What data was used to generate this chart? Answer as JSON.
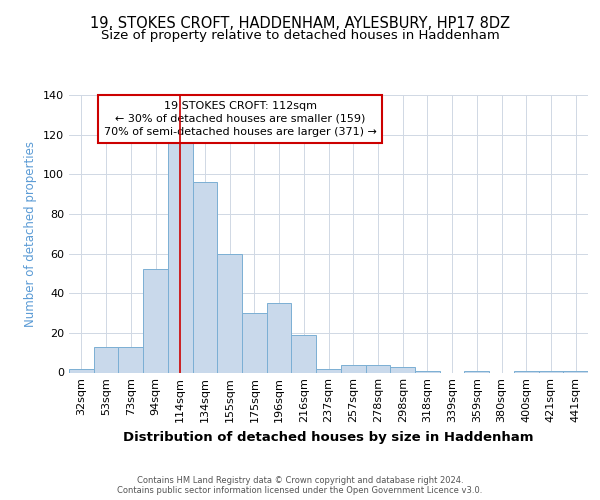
{
  "title1": "19, STOKES CROFT, HADDENHAM, AYLESBURY, HP17 8DZ",
  "title2": "Size of property relative to detached houses in Haddenham",
  "xlabel": "Distribution of detached houses by size in Haddenham",
  "ylabel": "Number of detached properties",
  "categories": [
    "32sqm",
    "53sqm",
    "73sqm",
    "94sqm",
    "114sqm",
    "134sqm",
    "155sqm",
    "175sqm",
    "196sqm",
    "216sqm",
    "237sqm",
    "257sqm",
    "278sqm",
    "298sqm",
    "318sqm",
    "339sqm",
    "359sqm",
    "380sqm",
    "400sqm",
    "421sqm",
    "441sqm"
  ],
  "values": [
    2,
    13,
    13,
    52,
    116,
    96,
    60,
    30,
    35,
    19,
    2,
    4,
    4,
    3,
    1,
    0,
    1,
    0,
    1,
    1,
    1
  ],
  "bar_color": "#c9d9eb",
  "bar_edge_color": "#7bafd4",
  "vline_x_idx": 4,
  "vline_color": "#cc0000",
  "annotation_text": "19 STOKES CROFT: 112sqm\n← 30% of detached houses are smaller (159)\n70% of semi-detached houses are larger (371) →",
  "annotation_box_color": "#ffffff",
  "annotation_box_edge": "#cc0000",
  "ylim": [
    0,
    140
  ],
  "yticks": [
    0,
    20,
    40,
    60,
    80,
    100,
    120,
    140
  ],
  "footer_text": "Contains HM Land Registry data © Crown copyright and database right 2024.\nContains public sector information licensed under the Open Government Licence v3.0.",
  "bg_color": "#ffffff",
  "grid_color": "#d0d8e4",
  "title1_fontsize": 10.5,
  "title2_fontsize": 9.5,
  "xlabel_fontsize": 9.5,
  "ylabel_fontsize": 8.5,
  "ylabel_color": "#5b9bd5",
  "tick_fontsize": 8,
  "footer_fontsize": 6.0,
  "annotation_fontsize": 8.0
}
